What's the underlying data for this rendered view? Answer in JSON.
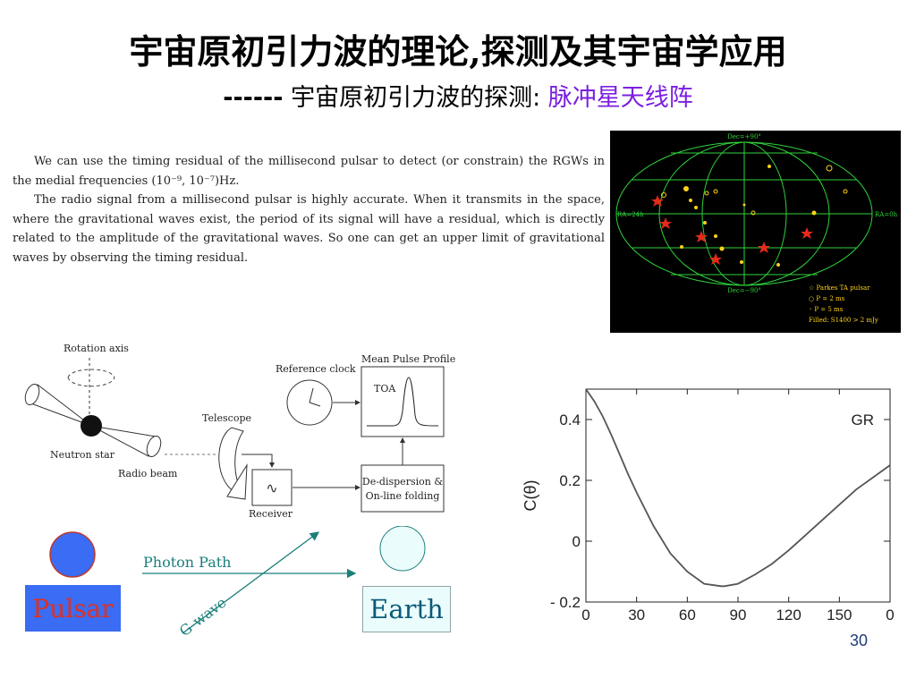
{
  "slide": {
    "title": "宇宙原初引力波的理论,探测及其宇宙学应用",
    "subtitle_dash": "------",
    "subtitle_main": " 宇宙原初引力波的探测: ",
    "subtitle_accent": "脉冲星天线阵",
    "page_number": "30"
  },
  "paragraph": {
    "p1": "We can use the timing residual of the millisecond pulsar to detect (or constrain) the RGWs in the medial frequencies (10⁻⁹, 10⁻⁷)Hz.",
    "p2": "The radio signal from a millisecond pulsar is highly accurate. When it transmits in the space, where the gravitational waves exist, the period of its signal will have a residual, which is directly related to the amplitude of the gravitational waves. So one can get an upper limit of gravitational waves by observing the timing residual."
  },
  "skymap": {
    "top_label": "Dec=+90°",
    "bottom_label": "Dec=−90°",
    "left_label": "RA=24h",
    "right_label": "RA=0h",
    "legend": [
      "☆ Parkes TA pulsar",
      "○ P = 2 ms",
      "◦ P = 5 ms",
      "Filled: S1400 > 2 mJy"
    ]
  },
  "diagram": {
    "rotation_axis": "Rotation axis",
    "neutron_star": "Neutron star",
    "radio_beam": "Radio beam",
    "telescope": "Telescope",
    "receiver": "Receiver",
    "reference_clock": "Reference clock",
    "mean_pulse_profile": "Mean Pulse Profile",
    "toa": "TOA",
    "dedispersion_1": "De-dispersion &",
    "dedispersion_2": "On-line folding"
  },
  "bottom": {
    "pulsar": "Pulsar",
    "earth": "Earth",
    "photon_path": "Photon Path",
    "g_wave": "G-wave"
  },
  "chart_data": {
    "type": "line",
    "title": "",
    "xlabel": "",
    "ylabel": "C(θ)",
    "xlim": [
      0,
      180
    ],
    "ylim": [
      -0.2,
      0.5
    ],
    "xticks": [
      "0",
      "30",
      "60",
      "90",
      "120",
      "150",
      "0"
    ],
    "yticks": [
      "0.4",
      "0.2",
      "0",
      "- 0.2"
    ],
    "series": [
      {
        "name": "GR",
        "x": [
          0,
          5,
          10,
          15,
          20,
          25,
          30,
          40,
          50,
          60,
          70,
          80,
          82,
          90,
          100,
          110,
          120,
          130,
          140,
          150,
          160,
          170,
          180
        ],
        "y": [
          0.5,
          0.46,
          0.41,
          0.35,
          0.285,
          0.22,
          0.16,
          0.05,
          -0.04,
          -0.1,
          -0.14,
          -0.148,
          -0.148,
          -0.14,
          -0.11,
          -0.075,
          -0.03,
          0.02,
          0.07,
          0.12,
          0.17,
          0.21,
          0.25
        ]
      }
    ],
    "legend": "GR"
  }
}
